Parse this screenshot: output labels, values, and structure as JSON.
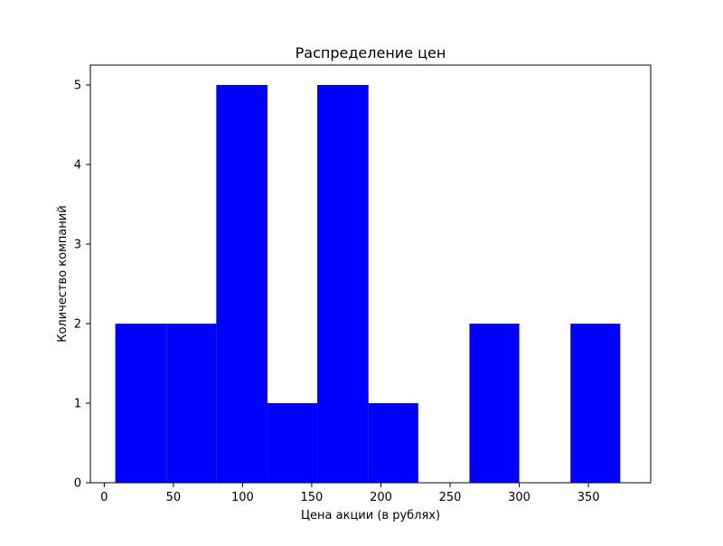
{
  "chart_data": {
    "type": "bar",
    "title": "Распределение цен",
    "xlabel": "Цена акции (в рублях)",
    "ylabel": "Количество компаний",
    "bar_color": "#0000ff",
    "grid": false,
    "xlim": [
      -10,
      395
    ],
    "ylim": [
      0,
      5.25
    ],
    "xticks": [
      0,
      50,
      100,
      150,
      200,
      250,
      300,
      350
    ],
    "yticks": [
      0,
      1,
      2,
      3,
      4,
      5
    ],
    "bins": [
      {
        "start": 8,
        "end": 45,
        "value": 2
      },
      {
        "start": 45,
        "end": 81,
        "value": 2
      },
      {
        "start": 81,
        "end": 118,
        "value": 5
      },
      {
        "start": 118,
        "end": 154,
        "value": 1
      },
      {
        "start": 154,
        "end": 191,
        "value": 5
      },
      {
        "start": 191,
        "end": 227,
        "value": 1
      },
      {
        "start": 227,
        "end": 264,
        "value": 0
      },
      {
        "start": 264,
        "end": 300,
        "value": 2
      },
      {
        "start": 300,
        "end": 337,
        "value": 0
      },
      {
        "start": 337,
        "end": 373,
        "value": 2
      }
    ]
  }
}
